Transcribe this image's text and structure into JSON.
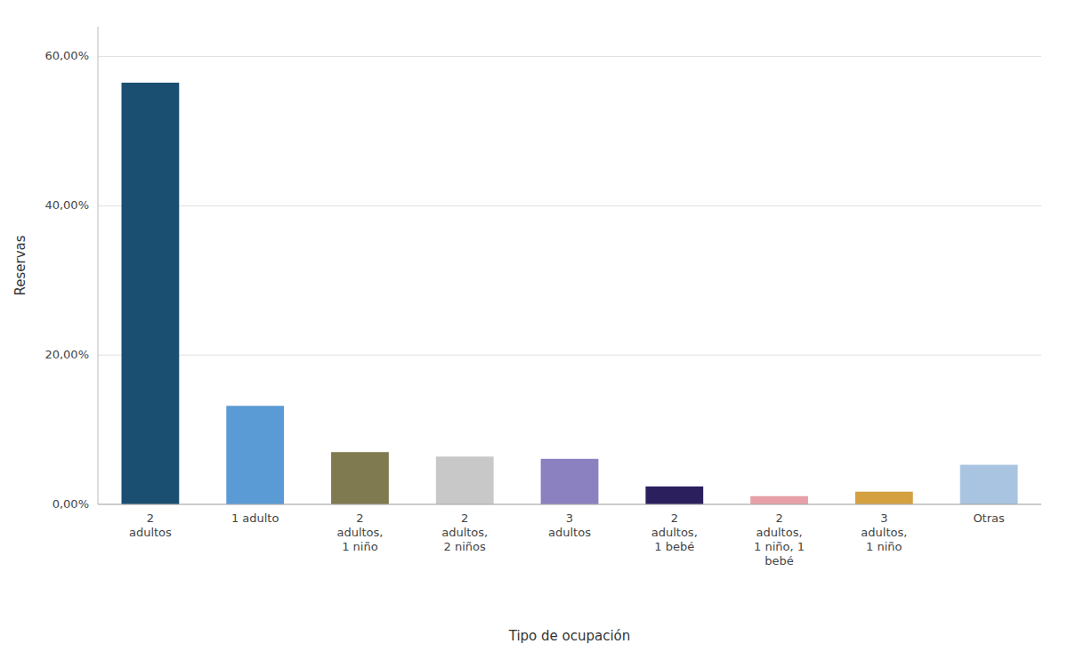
{
  "chart_data": {
    "type": "bar",
    "categories": [
      "2\nadultos",
      "1 adulto",
      "2\nadultos,\n1 niño",
      "2\nadultos,\n2 niños",
      "3\nadultos",
      "2\nadultos,\n1 bebé",
      "2\nadultos,\n1 niño, 1\nbebé",
      "3\nadultos,\n1 niño",
      "Otras"
    ],
    "values": [
      56.5,
      13.2,
      7.0,
      6.4,
      6.1,
      2.4,
      1.1,
      1.7,
      5.3
    ],
    "colors": [
      "#1b4f72",
      "#5b9bd5",
      "#7f7a50",
      "#c8c8c8",
      "#8b80c0",
      "#2c1f5e",
      "#e8a0a8",
      "#d4a040",
      "#a8c4e0"
    ],
    "ylabel": "Reservas",
    "xlabel": "Tipo de ocupación",
    "ylim": [
      0,
      64
    ],
    "yticks": [
      {
        "value": 0,
        "label": "0,00%"
      },
      {
        "value": 20,
        "label": "20,00%"
      },
      {
        "value": 40,
        "label": "40,00%"
      },
      {
        "value": 60,
        "label": "60,00%"
      }
    ],
    "grid": true
  }
}
